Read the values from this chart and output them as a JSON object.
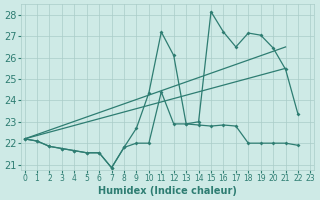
{
  "xlabel": "Humidex (Indice chaleur)",
  "x": [
    0,
    1,
    2,
    3,
    4,
    5,
    6,
    7,
    8,
    9,
    10,
    11,
    12,
    13,
    14,
    15,
    16,
    17,
    18,
    19,
    20,
    21,
    22,
    23
  ],
  "line_zigzag": [
    22.2,
    22.1,
    21.85,
    21.75,
    21.65,
    21.55,
    21.55,
    20.85,
    21.8,
    22.7,
    24.35,
    27.2,
    26.1,
    22.9,
    23.0,
    28.15,
    27.2,
    26.5,
    27.15,
    27.05,
    26.45,
    25.45,
    23.35,
    null
  ],
  "line_flat": [
    22.2,
    22.1,
    21.85,
    21.75,
    21.65,
    21.55,
    21.55,
    20.85,
    21.8,
    22.0,
    22.0,
    24.4,
    22.9,
    22.9,
    22.85,
    22.8,
    22.85,
    22.8,
    22.0,
    22.0,
    22.0,
    22.0,
    21.9,
    null
  ],
  "trend1_x": [
    0,
    21
  ],
  "trend1_y": [
    22.2,
    26.5
  ],
  "trend2_x": [
    0,
    21
  ],
  "trend2_y": [
    22.2,
    25.5
  ],
  "ylim": [
    20.75,
    28.5
  ],
  "xlim": [
    -0.3,
    23.3
  ],
  "yticks": [
    21,
    22,
    23,
    24,
    25,
    26,
    27,
    28
  ],
  "xticks": [
    0,
    1,
    2,
    3,
    4,
    5,
    6,
    7,
    8,
    9,
    10,
    11,
    12,
    13,
    14,
    15,
    16,
    17,
    18,
    19,
    20,
    21,
    22,
    23
  ],
  "line_color": "#2e7d72",
  "bg_color": "#ceeae6",
  "grid_color": "#aaccc8",
  "xlabel_fontsize": 7,
  "ytick_fontsize": 7,
  "xtick_fontsize": 5.5
}
